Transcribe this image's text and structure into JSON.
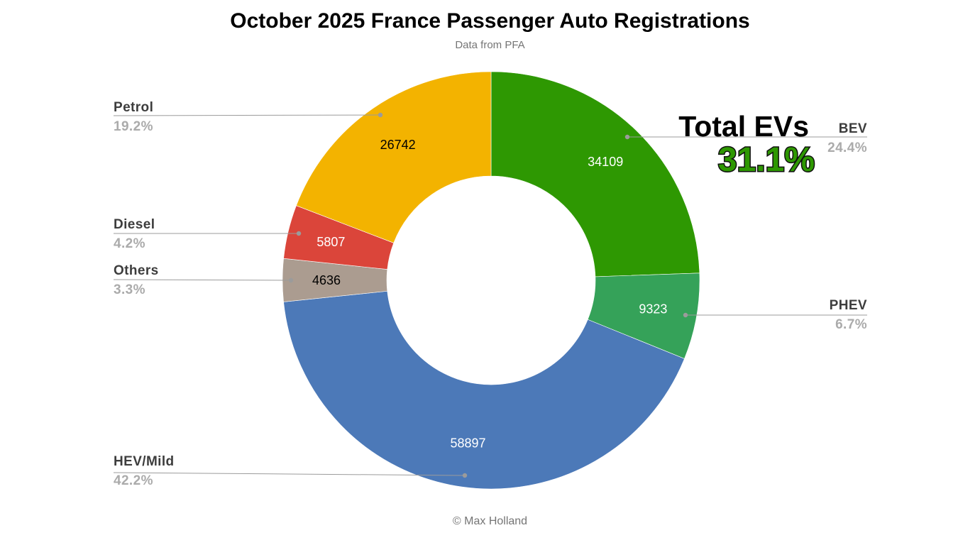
{
  "header": {
    "title": "October 2025 France Passenger Auto Registrations",
    "subtitle": "Data from PFA"
  },
  "footer": {
    "credit": "© Max Holland"
  },
  "annotation": {
    "label": "Total EVs",
    "value": "31.1%",
    "value_color": "#2e9802",
    "outline_color": "#101010"
  },
  "chart_data": {
    "type": "pie",
    "variant": "donut",
    "title": "October 2025 France Passenger Auto Registrations",
    "subtitle": "Data from PFA",
    "direction": "clockwise",
    "start_angle_deg": 0,
    "inner_radius_ratio": 0.5,
    "legend_position": "none",
    "segments": [
      {
        "label": "BEV",
        "value": 34109,
        "pct_label": "24.4%",
        "color": "#2e9802",
        "value_label_color": "#ffffff"
      },
      {
        "label": "PHEV",
        "value": 9323,
        "pct_label": "6.7%",
        "color": "#35a259",
        "value_label_color": "#ffffff"
      },
      {
        "label": "HEV/Mild",
        "value": 58897,
        "pct_label": "42.2%",
        "color": "#4c79b8",
        "value_label_color": "#ffffff"
      },
      {
        "label": "Others",
        "value": 4636,
        "pct_label": "3.3%",
        "color": "#ab9c90",
        "value_label_color": "#000000"
      },
      {
        "label": "Diesel",
        "value": 5807,
        "pct_label": "4.2%",
        "color": "#db453a",
        "value_label_color": "#ffffff"
      },
      {
        "label": "Petrol",
        "value": 26742,
        "pct_label": "19.2%",
        "color": "#f3b300",
        "value_label_color": "#000000"
      }
    ]
  }
}
